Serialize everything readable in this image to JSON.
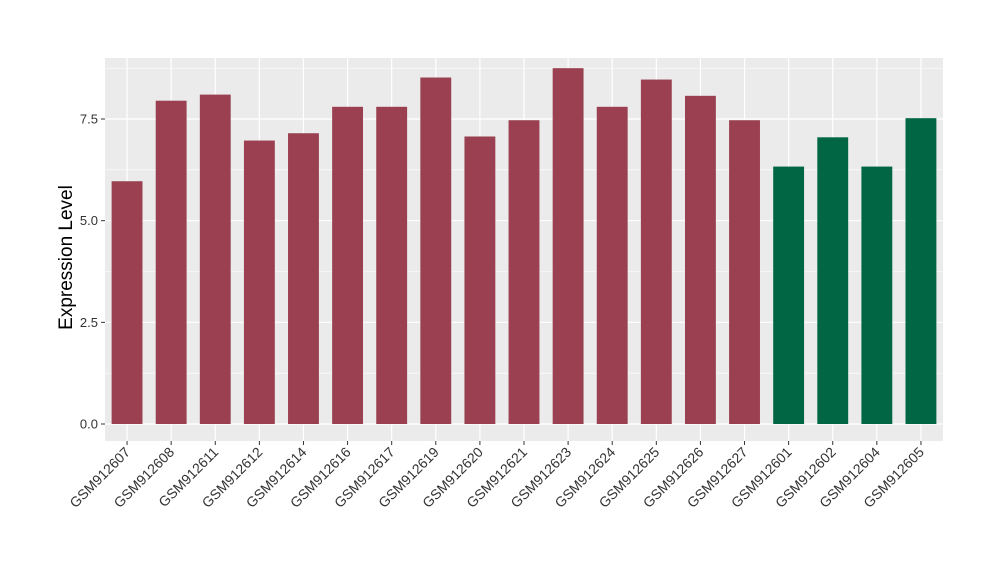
{
  "chart_data": {
    "type": "bar",
    "categories": [
      "GSM912607",
      "GSM912608",
      "GSM912611",
      "GSM912612",
      "GSM912614",
      "GSM912616",
      "GSM912617",
      "GSM912619",
      "GSM912620",
      "GSM912621",
      "GSM912623",
      "GSM912624",
      "GSM912625",
      "GSM912626",
      "GSM912627",
      "GSM912601",
      "GSM912602",
      "GSM912604",
      "GSM912605"
    ],
    "values": [
      5.97,
      7.95,
      8.1,
      6.97,
      7.15,
      7.8,
      7.8,
      8.52,
      7.07,
      7.47,
      8.75,
      7.8,
      8.47,
      8.07,
      7.47,
      6.33,
      7.05,
      6.33,
      7.52
    ],
    "bar_colors": [
      "#9a4050",
      "#9a4050",
      "#9a4050",
      "#9a4050",
      "#9a4050",
      "#9a4050",
      "#9a4050",
      "#9a4050",
      "#9a4050",
      "#9a4050",
      "#9a4050",
      "#9a4050",
      "#9a4050",
      "#9a4050",
      "#9a4050",
      "#006644",
      "#006644",
      "#006644",
      "#006644"
    ],
    "title": "",
    "xlabel": "",
    "ylabel": "Expression Level",
    "ylim": [
      0,
      9.0
    ],
    "yticks": [
      0.0,
      2.5,
      5.0,
      7.5
    ],
    "ytick_labels": [
      "0.0",
      "2.5",
      "5.0",
      "7.5"
    ],
    "grid": true,
    "panel_background": "#ebebeb",
    "legend": "none"
  }
}
